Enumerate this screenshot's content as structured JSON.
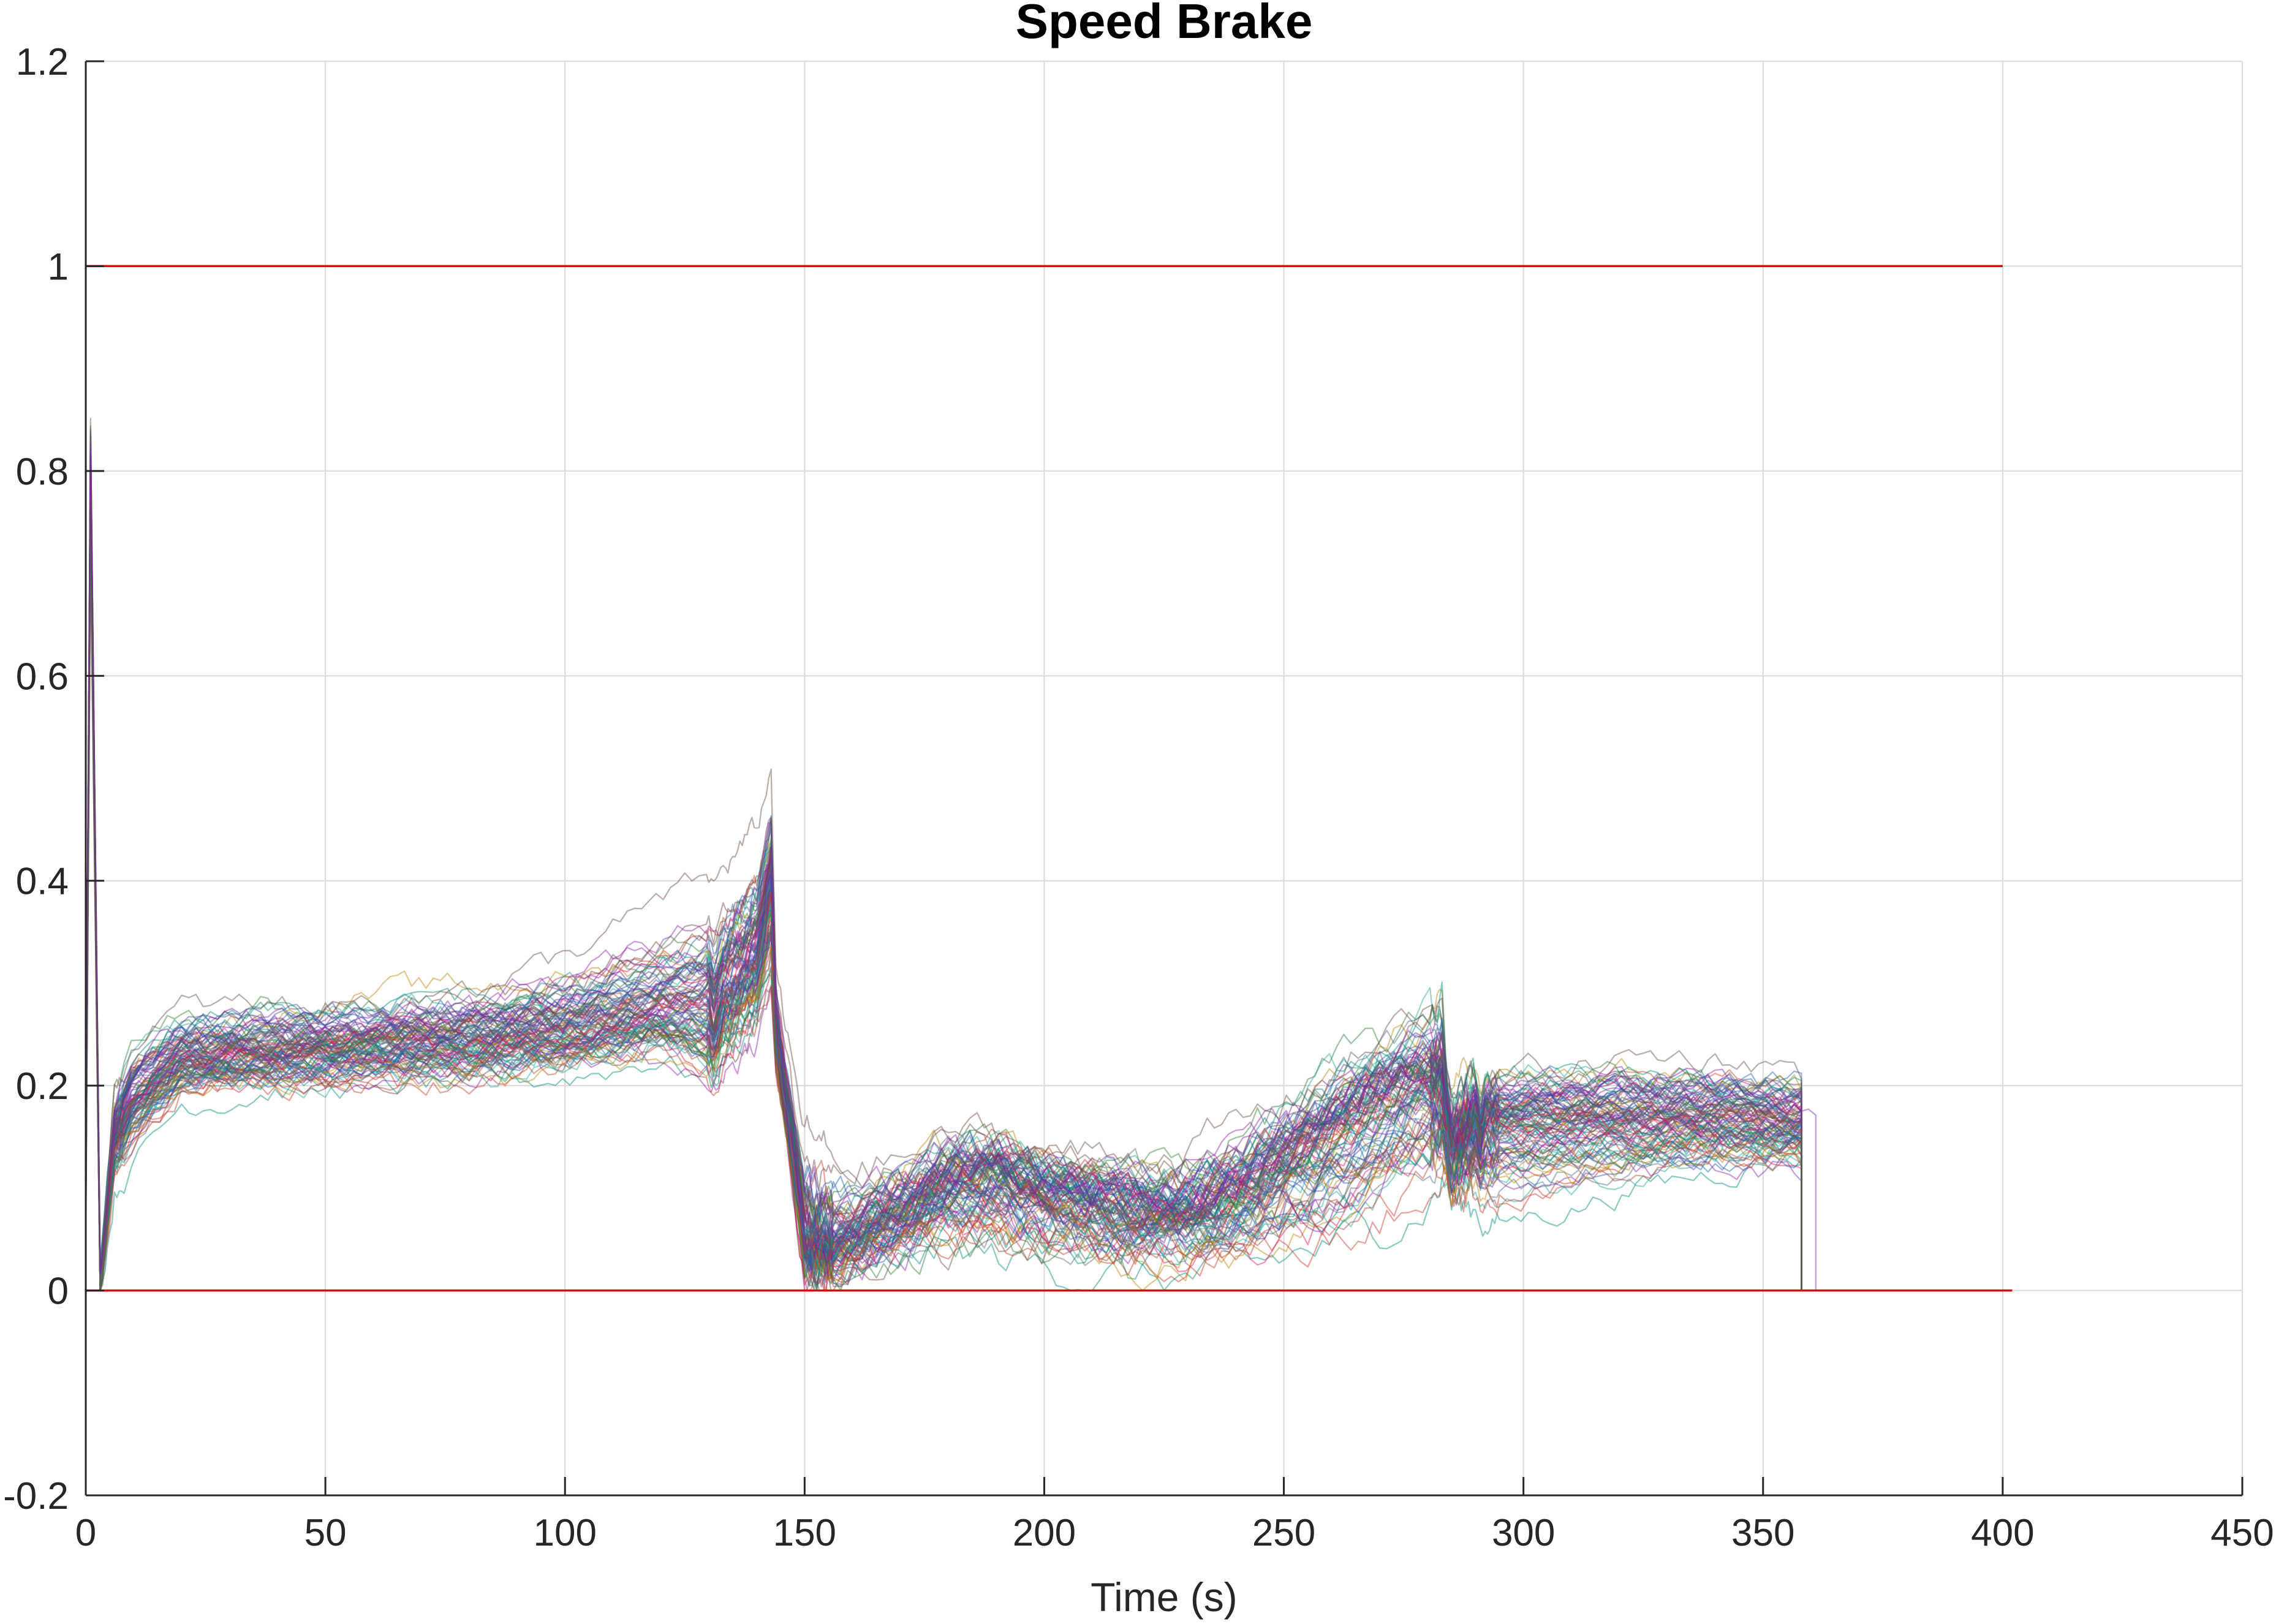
{
  "chart_data": {
    "type": "line",
    "title": "Speed Brake",
    "xlabel": "Time (s)",
    "ylabel": "",
    "xlim": [
      0,
      450
    ],
    "ylim": [
      -0.2,
      1.2
    ],
    "xticks": [
      0,
      50,
      100,
      150,
      200,
      250,
      300,
      350,
      400,
      450
    ],
    "yticks": [
      -0.2,
      0,
      0.2,
      0.4,
      0.6,
      0.8,
      1,
      1.2
    ],
    "grid": true,
    "legend": "none",
    "limits": [
      {
        "label": "upper limit",
        "y": 1,
        "x": [
          0,
          400
        ],
        "color": "#e8000b"
      },
      {
        "label": "lower limit",
        "y": 0,
        "x": [
          0,
          402
        ],
        "color": "#e8000b"
      }
    ],
    "ensemble": {
      "run_count": 100,
      "envelope": {
        "x": [
          0,
          1,
          3,
          6,
          10,
          20,
          40,
          60,
          80,
          100,
          120,
          130,
          131,
          133,
          140,
          143,
          144,
          146,
          150,
          152,
          155,
          160,
          170,
          180,
          190,
          200,
          210,
          220,
          230,
          240,
          250,
          260,
          270,
          278,
          283,
          284,
          285,
          290,
          291,
          292,
          300,
          320,
          340,
          357,
          358
        ],
        "low": [
          0.05,
          0.72,
          0.0,
          0.1,
          0.13,
          0.18,
          0.19,
          0.19,
          0.19,
          0.2,
          0.21,
          0.17,
          0.17,
          0.19,
          0.22,
          0.26,
          0.2,
          0.15,
          0.0,
          0.01,
          0.01,
          0.01,
          0.01,
          0.02,
          0.02,
          0.02,
          0.02,
          0.01,
          0.01,
          0.01,
          0.02,
          0.03,
          0.05,
          0.07,
          0.1,
          0.1,
          0.08,
          0.08,
          0.07,
          0.06,
          0.07,
          0.09,
          0.1,
          0.11,
          0.1
        ],
        "mean": [
          0.1,
          0.8,
          0.0,
          0.15,
          0.19,
          0.23,
          0.235,
          0.24,
          0.245,
          0.255,
          0.275,
          0.28,
          0.26,
          0.29,
          0.33,
          0.4,
          0.25,
          0.18,
          0.05,
          0.04,
          0.04,
          0.05,
          0.08,
          0.11,
          0.12,
          0.1,
          0.09,
          0.08,
          0.08,
          0.1,
          0.13,
          0.16,
          0.19,
          0.21,
          0.2,
          0.17,
          0.14,
          0.17,
          0.15,
          0.17,
          0.17,
          0.17,
          0.17,
          0.165,
          0.17
        ],
        "high": [
          0.15,
          0.86,
          0.03,
          0.2,
          0.25,
          0.28,
          0.29,
          0.3,
          0.31,
          0.33,
          0.37,
          0.39,
          0.38,
          0.4,
          0.44,
          0.5,
          0.32,
          0.25,
          0.15,
          0.14,
          0.13,
          0.12,
          0.13,
          0.15,
          0.15,
          0.14,
          0.13,
          0.13,
          0.14,
          0.16,
          0.19,
          0.23,
          0.26,
          0.27,
          0.32,
          0.22,
          0.2,
          0.23,
          0.2,
          0.22,
          0.23,
          0.235,
          0.23,
          0.22,
          0.21
        ]
      },
      "end_time": 358,
      "after_end_value": 0,
      "straggler_end_time": 361
    },
    "colors": [
      "#1f5fa8",
      "#c0392b",
      "#2e7d32",
      "#7b1fa2",
      "#00897b",
      "#b8860b",
      "#546e7a",
      "#d81b60",
      "#3949ab",
      "#6d4c41",
      "#26a69a",
      "#8e24aa"
    ]
  }
}
